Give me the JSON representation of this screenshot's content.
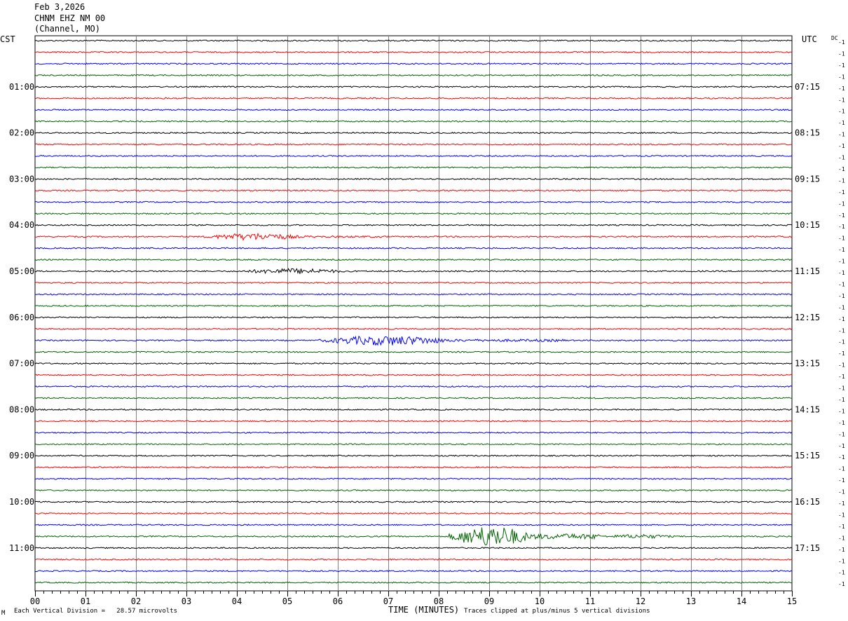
{
  "header": {
    "date": "Feb 3,2026",
    "station": "CHNM EHZ NM 00",
    "location": "(Channel, MO)"
  },
  "left_timezone": "CST",
  "right_timezone": "UTC",
  "dc_label": "DC",
  "footer": {
    "scale_note": "Each Vertical Division =   28.57 microvolts",
    "xlabel": "TIME (MINUTES)",
    "clip_note": "Traces clipped at plus/minus 5 vertical divisions",
    "corner_mark": "M"
  },
  "colors": {
    "black": "#000000",
    "red": "#ff0000",
    "blue": "#0000ff",
    "green": "#006400",
    "grid": "#808080"
  },
  "chart_data": {
    "type": "line",
    "title": "CHNM EHZ NM 00",
    "xlabel": "TIME (MINUTES)",
    "xlim": [
      0,
      15
    ],
    "x_ticks": [
      "00",
      "01",
      "02",
      "03",
      "04",
      "05",
      "06",
      "07",
      "08",
      "09",
      "10",
      "11",
      "12",
      "13",
      "14",
      "15"
    ],
    "traces_per_hour": 4,
    "minutes_per_trace": 15,
    "trace_count": 48,
    "trace_color_cycle": [
      "black",
      "red",
      "blue",
      "green"
    ],
    "left_hour_labels": [
      "01:00",
      "02:00",
      "03:00",
      "04:00",
      "05:00",
      "06:00",
      "07:00",
      "08:00",
      "09:00",
      "10:00",
      "11:00"
    ],
    "right_hour_labels": [
      "07:15",
      "08:15",
      "09:15",
      "10:15",
      "11:15",
      "12:15",
      "13:15",
      "14:15",
      "15:15",
      "16:15",
      "17:15"
    ],
    "dc_offset_value": "-1",
    "events": [
      {
        "trace": 17,
        "start_min": 3.3,
        "end_min": 7.0,
        "amplitude": 5
      },
      {
        "trace": 20,
        "start_min": 4.0,
        "end_min": 8.0,
        "amplitude": 4
      },
      {
        "trace": 26,
        "start_min": 5.6,
        "end_min": 10.5,
        "amplitude": 7
      },
      {
        "trace": 43,
        "start_min": 8.2,
        "end_min": 11.2,
        "amplitude": 15
      },
      {
        "trace": 43,
        "start_min": 11.2,
        "end_min": 14.0,
        "amplitude": 3
      }
    ]
  }
}
